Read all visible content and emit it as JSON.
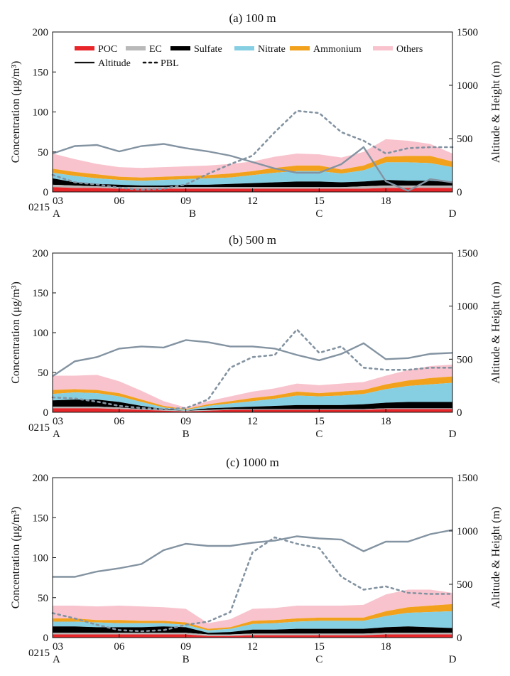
{
  "series_names": [
    "POC",
    "EC",
    "Sulfate",
    "Nitrate",
    "Ammonium",
    "Others"
  ],
  "line_names": [
    "Altitude",
    "PBL"
  ],
  "colors": {
    "POC": "#e8262a",
    "EC": "#b9b9b9",
    "Sulfate": "#000000",
    "Nitrate": "#86cfe3",
    "Ammonium": "#f2a11c",
    "Others": "#f8c3cd",
    "Altitude": "#8393a1",
    "PBL": "#8393a1",
    "axis": "#111111"
  },
  "y_axis_label": "Concentration (μg/m³)",
  "y2_axis_label": "Altitude & Height (m)",
  "x_date_label": "0215",
  "x_ticks": [
    "03",
    "06",
    "09",
    "12",
    "15",
    "18"
  ],
  "x_tick_hours": [
    3,
    6,
    9,
    12,
    15,
    18
  ],
  "y_ticks": [
    "0",
    "50",
    "100",
    "150",
    "200"
  ],
  "y2_ticks": [
    "0",
    "500",
    "1000",
    "1500"
  ],
  "chart_data": [
    {
      "type": "area",
      "title": "(a) 100 m",
      "x_hours": [
        3,
        4,
        5,
        6,
        7,
        8,
        9,
        10,
        11,
        12,
        13,
        14,
        15,
        16,
        17,
        18,
        19,
        20,
        21
      ],
      "xlim": [
        3,
        21
      ],
      "ylim": [
        0,
        200
      ],
      "y2lim": [
        0,
        1500
      ],
      "site_markers": [
        {
          "label": "A",
          "hour": 3
        },
        {
          "label": "B",
          "hour": 9.3
        },
        {
          "label": "C",
          "hour": 15
        },
        {
          "label": "D",
          "hour": 21
        }
      ],
      "stack_tops": {
        "POC": [
          6,
          5,
          5,
          4,
          4,
          4,
          4,
          4,
          4,
          4,
          4,
          4,
          4,
          4,
          4,
          5,
          5,
          5,
          5
        ],
        "EC": [
          9,
          8,
          7,
          6,
          6,
          6,
          6,
          6,
          6,
          6,
          6,
          6,
          6,
          6,
          7,
          8,
          8,
          8,
          8
        ],
        "Sulfate": [
          17,
          12,
          10,
          9,
          8,
          8,
          9,
          9,
          10,
          11,
          12,
          13,
          13,
          12,
          13,
          15,
          14,
          14,
          12
        ],
        "Nitrate": [
          24,
          20,
          17,
          15,
          14,
          15,
          16,
          17,
          18,
          21,
          24,
          26,
          26,
          23,
          27,
          37,
          37,
          36,
          31
        ],
        "Ammonium": [
          29,
          25,
          22,
          19,
          18,
          19,
          20,
          21,
          23,
          26,
          30,
          33,
          33,
          28,
          33,
          44,
          45,
          45,
          38
        ],
        "Others": [
          48,
          41,
          35,
          31,
          30,
          31,
          32,
          33,
          35,
          38,
          44,
          48,
          47,
          43,
          50,
          66,
          64,
          60,
          48
        ]
      },
      "altitude": [
        360,
        430,
        440,
        380,
        430,
        450,
        410,
        380,
        340,
        280,
        220,
        180,
        180,
        260,
        420,
        100,
        10,
        120,
        90
      ],
      "pbl": [
        160,
        90,
        70,
        40,
        20,
        30,
        70,
        170,
        260,
        340,
        560,
        760,
        740,
        560,
        480,
        360,
        410,
        420,
        420
      ]
    },
    {
      "type": "area",
      "title": "(b) 500 m",
      "x_hours": [
        3,
        4,
        5,
        6,
        7,
        8,
        9,
        10,
        11,
        12,
        13,
        14,
        15,
        16,
        17,
        18,
        19,
        20,
        21
      ],
      "xlim": [
        3,
        21
      ],
      "ylim": [
        0,
        200
      ],
      "y2lim": [
        0,
        1500
      ],
      "site_markers": [
        {
          "label": "A",
          "hour": 3
        },
        {
          "label": "B",
          "hour": 9
        },
        {
          "label": "C",
          "hour": 15
        },
        {
          "label": "D",
          "hour": 21
        }
      ],
      "stack_tops": {
        "POC": [
          5,
          5,
          5,
          4,
          3,
          2,
          1,
          2,
          3,
          3,
          3,
          3,
          3,
          3,
          3,
          4,
          4,
          4,
          4
        ],
        "EC": [
          7,
          7,
          7,
          6,
          4,
          3,
          2,
          3,
          4,
          4,
          4,
          4,
          4,
          4,
          4,
          5,
          5,
          5,
          5
        ],
        "Sulfate": [
          15,
          16,
          16,
          13,
          8,
          4,
          2,
          5,
          6,
          7,
          8,
          9,
          9,
          9,
          10,
          12,
          13,
          13,
          13
        ],
        "Nitrate": [
          23,
          25,
          24,
          20,
          13,
          6,
          3,
          8,
          11,
          14,
          17,
          21,
          20,
          21,
          23,
          29,
          33,
          35,
          37
        ],
        "Ammonium": [
          28,
          29,
          28,
          24,
          16,
          8,
          4,
          10,
          14,
          18,
          21,
          26,
          24,
          26,
          28,
          35,
          40,
          43,
          45
        ],
        "Others": [
          46,
          46,
          47,
          39,
          27,
          14,
          6,
          14,
          20,
          26,
          30,
          36,
          34,
          36,
          38,
          46,
          53,
          58,
          60
        ]
      },
      "altitude": [
        340,
        480,
        520,
        600,
        620,
        610,
        680,
        660,
        620,
        620,
        600,
        540,
        490,
        550,
        650,
        500,
        510,
        550,
        560
      ],
      "pbl": [
        140,
        130,
        100,
        60,
        40,
        30,
        40,
        120,
        420,
        520,
        540,
        780,
        560,
        620,
        420,
        400,
        400,
        420,
        420
      ]
    },
    {
      "type": "area",
      "title": "(c) 1000 m",
      "x_hours": [
        3,
        4,
        5,
        6,
        7,
        8,
        9,
        10,
        11,
        12,
        13,
        14,
        15,
        16,
        17,
        18,
        19,
        20,
        21
      ],
      "xlim": [
        3,
        21
      ],
      "ylim": [
        0,
        200
      ],
      "y2lim": [
        0,
        1500
      ],
      "site_markers": [
        {
          "label": "A",
          "hour": 3
        },
        {
          "label": "B",
          "hour": 9
        },
        {
          "label": "C",
          "hour": 15
        },
        {
          "label": "D",
          "hour": 21
        }
      ],
      "stack_tops": {
        "POC": [
          4,
          4,
          4,
          4,
          4,
          4,
          4,
          2,
          2,
          3,
          3,
          3,
          3,
          3,
          3,
          4,
          4,
          4,
          4
        ],
        "EC": [
          6,
          6,
          6,
          6,
          6,
          6,
          6,
          4,
          4,
          5,
          5,
          5,
          5,
          5,
          5,
          6,
          6,
          6,
          6
        ],
        "Sulfate": [
          14,
          14,
          13,
          13,
          13,
          14,
          13,
          6,
          7,
          10,
          10,
          11,
          11,
          11,
          11,
          13,
          14,
          13,
          12
        ],
        "Nitrate": [
          20,
          20,
          19,
          18,
          18,
          18,
          16,
          9,
          11,
          17,
          18,
          20,
          21,
          21,
          21,
          27,
          31,
          32,
          33
        ],
        "Ammonium": [
          24,
          24,
          22,
          22,
          21,
          21,
          19,
          11,
          13,
          21,
          22,
          24,
          25,
          25,
          25,
          33,
          38,
          40,
          42
        ],
        "Others": [
          40,
          40,
          39,
          40,
          39,
          38,
          36,
          18,
          23,
          36,
          37,
          40,
          40,
          40,
          41,
          54,
          60,
          60,
          56
        ]
      },
      "altitude": [
        570,
        570,
        620,
        650,
        690,
        820,
        880,
        860,
        860,
        890,
        910,
        950,
        930,
        920,
        810,
        900,
        900,
        970,
        1010
      ],
      "pbl": [
        230,
        180,
        120,
        70,
        60,
        70,
        120,
        150,
        240,
        800,
        940,
        880,
        840,
        570,
        450,
        480,
        420,
        410,
        410
      ]
    }
  ]
}
